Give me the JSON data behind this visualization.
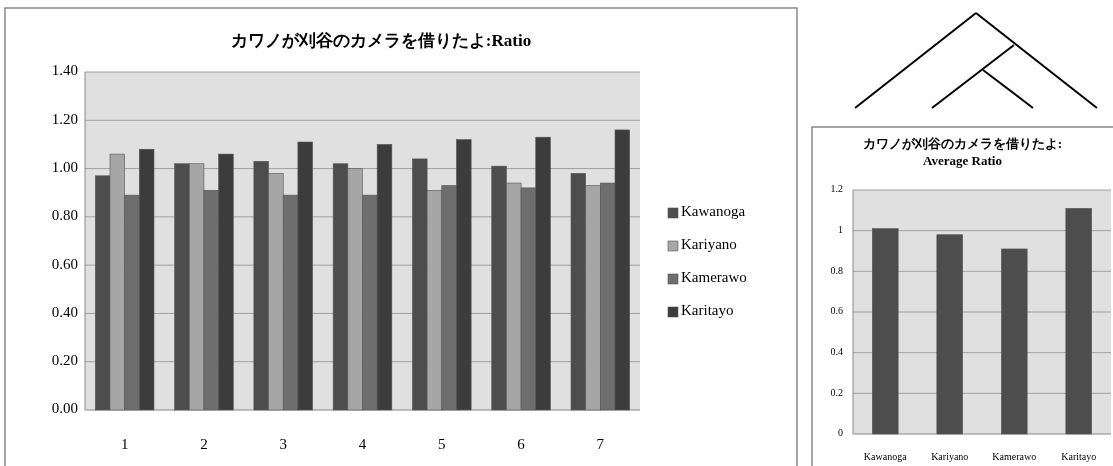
{
  "chart_data": [
    {
      "type": "bar",
      "title": "カワノが刈谷のカメラを借りたよ:Ratio",
      "categories": [
        "1",
        "2",
        "3",
        "4",
        "5",
        "6",
        "7"
      ],
      "series": [
        {
          "name": "Kawanoga",
          "color": "#4d4d4d",
          "values": [
            0.97,
            1.02,
            1.03,
            1.02,
            1.04,
            1.01,
            0.98
          ]
        },
        {
          "name": "Kariyano",
          "color": "#a6a6a6",
          "values": [
            1.06,
            1.02,
            0.98,
            1.0,
            0.91,
            0.94,
            0.93
          ]
        },
        {
          "name": "Kamerawo",
          "color": "#6e6e6e",
          "values": [
            0.89,
            0.91,
            0.89,
            0.89,
            0.93,
            0.92,
            0.94
          ]
        },
        {
          "name": "Karitayo",
          "color": "#3c3c3c",
          "values": [
            1.08,
            1.06,
            1.11,
            1.1,
            1.12,
            1.13,
            1.16
          ]
        }
      ],
      "ylim": [
        0,
        1.4
      ],
      "yticks": [
        {
          "value": 0,
          "label": "0.00"
        },
        {
          "value": 0.2,
          "label": "0.20"
        },
        {
          "value": 0.4,
          "label": "0.40"
        },
        {
          "value": 0.6,
          "label": "0.60"
        },
        {
          "value": 0.8,
          "label": "0.80"
        },
        {
          "value": 1.0,
          "label": "1.00"
        },
        {
          "value": 1.2,
          "label": "1.20"
        },
        {
          "value": 1.4,
          "label": "1.40"
        }
      ],
      "grid": "y",
      "legend": "right"
    },
    {
      "type": "bar",
      "title": "カワノが刈谷のカメラを借りたよ:\nAverage Ratio",
      "categories": [
        "Kawanoga",
        "Kariyano",
        "Kamerawo",
        "Karitayo"
      ],
      "values": [
        1.01,
        0.98,
        0.91,
        1.11
      ],
      "color": "#4d4d4d",
      "ylim": [
        0,
        1.2
      ],
      "yticks": [
        0,
        0.2,
        0.4,
        0.6,
        0.8,
        1,
        1.2
      ],
      "grid": "y"
    }
  ]
}
